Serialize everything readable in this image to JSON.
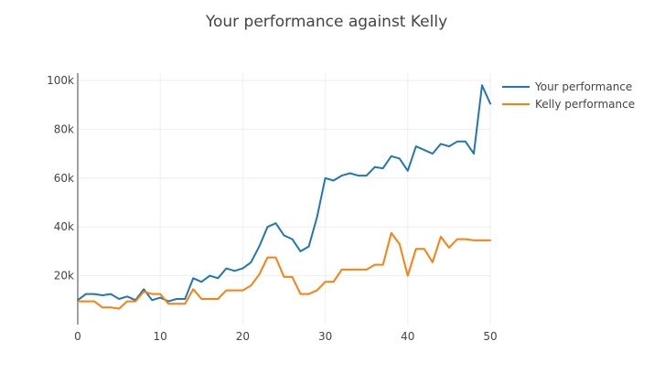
{
  "chart_data": {
    "type": "line",
    "title": "Your performance against Kelly",
    "xlabel": "",
    "ylabel": "",
    "xlim": [
      0,
      50
    ],
    "ylim": [
      0,
      103000
    ],
    "x_ticks": [
      0,
      10,
      20,
      30,
      40,
      50
    ],
    "x_tick_labels": [
      "0",
      "10",
      "20",
      "30",
      "40",
      "50"
    ],
    "y_ticks": [
      20000,
      40000,
      60000,
      80000,
      100000
    ],
    "y_tick_labels": [
      "20k",
      "40k",
      "60k",
      "80k",
      "100k"
    ],
    "grid": true,
    "legend_position": "top-right",
    "x": [
      0,
      1,
      2,
      3,
      4,
      5,
      6,
      7,
      8,
      9,
      10,
      11,
      12,
      13,
      14,
      15,
      16,
      17,
      18,
      19,
      20,
      21,
      22,
      23,
      24,
      25,
      26,
      27,
      28,
      29,
      30,
      31,
      32,
      33,
      34,
      35,
      36,
      37,
      38,
      39,
      40,
      41,
      42,
      43,
      44,
      45,
      46,
      47,
      48,
      49,
      50
    ],
    "series": [
      {
        "name": "Your performance",
        "color": "#1f77b4",
        "values": [
          10000,
          12500,
          12500,
          12000,
          12500,
          10500,
          11500,
          10000,
          14500,
          10000,
          11000,
          9500,
          10500,
          10500,
          19000,
          17500,
          20000,
          19000,
          23000,
          22000,
          23000,
          25500,
          32000,
          40000,
          41500,
          36500,
          35000,
          30000,
          32000,
          44000,
          60000,
          59000,
          61000,
          62000,
          61000,
          61000,
          64500,
          64000,
          69000,
          68000,
          63000,
          73000,
          71500,
          70000,
          74000,
          73000,
          75000,
          75000,
          70000,
          98000,
          90500
        ]
      },
      {
        "name": "Kelly performance",
        "color": "#ff7f0e",
        "values": [
          9500,
          9500,
          9500,
          7000,
          7000,
          6500,
          9500,
          9500,
          13500,
          12500,
          12500,
          8500,
          8500,
          8500,
          14500,
          10500,
          10500,
          10500,
          14000,
          14000,
          14000,
          16000,
          20500,
          27500,
          27500,
          19500,
          19500,
          12500,
          12500,
          14000,
          17500,
          17500,
          22500,
          22500,
          22500,
          22500,
          24500,
          24500,
          37500,
          33000,
          20000,
          31000,
          31000,
          25500,
          36000,
          31500,
          35000,
          35000,
          34500,
          34500,
          34500
        ]
      }
    ]
  }
}
